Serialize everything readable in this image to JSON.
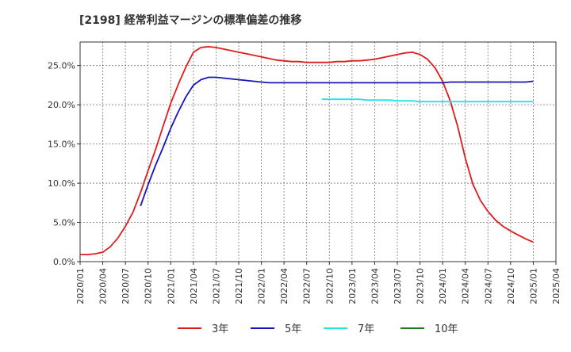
{
  "chart_data": {
    "type": "line",
    "title": "[2198]  経常利益マージンの標準偏差の推移",
    "xlabel": "",
    "ylabel": "",
    "ylim": [
      0,
      28
    ],
    "grid": true,
    "legend_position": "bottom",
    "y_ticks": [
      0,
      5,
      10,
      15,
      20,
      25
    ],
    "y_tick_labels": [
      "0.0%",
      "5.0%",
      "10.0%",
      "15.0%",
      "20.0%",
      "25.0%"
    ],
    "x_tick_labels": [
      "2020/01",
      "2020/04",
      "2020/07",
      "2020/10",
      "2021/01",
      "2021/04",
      "2021/07",
      "2021/10",
      "2022/01",
      "2022/04",
      "2022/07",
      "2022/10",
      "2023/01",
      "2023/04",
      "2023/07",
      "2023/10",
      "2024/01",
      "2024/04",
      "2024/07",
      "2024/10",
      "2025/01",
      "2025/04"
    ],
    "x_start": "2020/01",
    "x_end": "2025/04",
    "series": [
      {
        "name": "3年",
        "color": "#dd1c1c",
        "start": "2020/01",
        "values": [
          0.9,
          0.9,
          1.0,
          1.2,
          1.9,
          3.0,
          4.5,
          6.3,
          8.8,
          11.6,
          14.3,
          17.3,
          20.2,
          22.6,
          24.8,
          26.7,
          27.3,
          27.4,
          27.3,
          27.1,
          26.9,
          26.7,
          26.5,
          26.3,
          26.1,
          25.9,
          25.7,
          25.6,
          25.5,
          25.5,
          25.4,
          25.4,
          25.4,
          25.4,
          25.5,
          25.5,
          25.6,
          25.6,
          25.7,
          25.8,
          26.0,
          26.2,
          26.4,
          26.6,
          26.7,
          26.4,
          25.8,
          24.7,
          23.0,
          20.5,
          17.2,
          13.2,
          9.9,
          7.8,
          6.4,
          5.3,
          4.5,
          3.9,
          3.4,
          2.9,
          2.5
        ]
      },
      {
        "name": "5年",
        "color": "#1515b8",
        "start": "2020/09",
        "values": [
          7.1,
          9.8,
          12.3,
          14.6,
          17.0,
          19.1,
          21.0,
          22.5,
          23.2,
          23.5,
          23.5,
          23.4,
          23.3,
          23.2,
          23.1,
          23.0,
          22.9,
          22.8,
          22.8,
          22.8,
          22.8,
          22.8,
          22.8,
          22.8,
          22.8,
          22.8,
          22.8,
          22.8,
          22.8,
          22.8,
          22.8,
          22.8,
          22.8,
          22.8,
          22.8,
          22.8,
          22.8,
          22.8,
          22.8,
          22.8,
          22.8,
          22.9,
          22.9,
          22.9,
          22.9,
          22.9,
          22.9,
          22.9,
          22.9,
          22.9,
          22.9,
          22.9,
          23.0
        ]
      },
      {
        "name": "7年",
        "color": "#22e6e6",
        "start": "2022/09",
        "values": [
          20.7,
          20.7,
          20.7,
          20.7,
          20.7,
          20.7,
          20.6,
          20.6,
          20.6,
          20.6,
          20.5,
          20.5,
          20.5,
          20.4,
          20.4,
          20.4,
          20.4,
          20.4,
          20.4,
          20.4,
          20.4,
          20.4,
          20.4,
          20.4,
          20.4,
          20.4,
          20.4,
          20.4,
          20.4
        ]
      },
      {
        "name": "10年",
        "color": "#1e7a1e",
        "start": "2025/01",
        "values": []
      }
    ]
  }
}
